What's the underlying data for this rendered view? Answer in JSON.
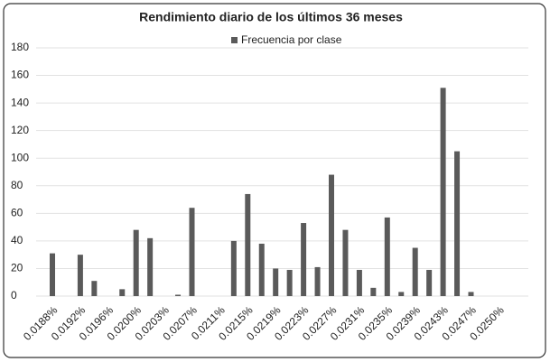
{
  "chart_data": {
    "type": "bar",
    "title": "Rendimiento diario de los últimos 36 meses",
    "series": [
      {
        "name": "Frecuencia por clase",
        "color": "#5a5a5a",
        "values": [
          31,
          0,
          30,
          11,
          0,
          5,
          48,
          42,
          0,
          1,
          64,
          0,
          0,
          40,
          74,
          38,
          20,
          19,
          53,
          21,
          88,
          48,
          19,
          6,
          57,
          3,
          35,
          19,
          151,
          105,
          3,
          0,
          0,
          0
        ]
      }
    ],
    "categories": [
      "0.0188%",
      null,
      "0.0192%",
      null,
      "0.0196%",
      null,
      "0.0200%",
      null,
      "0.0203%",
      null,
      "0.0207%",
      null,
      "0.0211%",
      null,
      "0.0215%",
      null,
      "0.0219%",
      null,
      "0.0223%",
      null,
      "0.0227%",
      null,
      "0.0231%",
      null,
      "0.0235%",
      null,
      "0.0239%",
      null,
      "0.0243%",
      null,
      "0.0247%",
      null,
      "0.0250%",
      null
    ],
    "ylim": [
      0,
      180
    ],
    "yticks": [
      0,
      20,
      40,
      60,
      80,
      100,
      120,
      140,
      160,
      180
    ],
    "grid": true,
    "legend": "top"
  }
}
